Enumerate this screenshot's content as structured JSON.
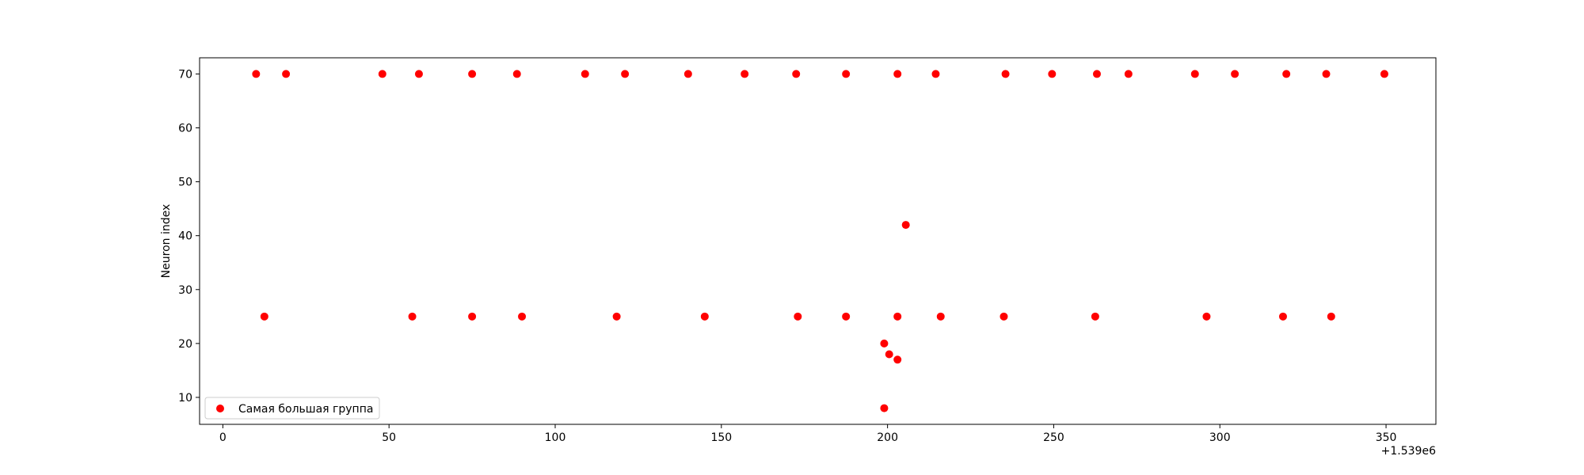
{
  "chart_data": {
    "type": "scatter",
    "title": "",
    "xlabel": "",
    "ylabel": "Neuron index",
    "x_offset_text": "+1.539e6",
    "xlim": [
      -7,
      365
    ],
    "ylim": [
      5,
      73
    ],
    "xticks": [
      0,
      50,
      100,
      150,
      200,
      250,
      300,
      350
    ],
    "yticks": [
      10,
      20,
      30,
      40,
      50,
      60,
      70
    ],
    "grid": false,
    "legend_position": "lower-left",
    "color": "#ff0000",
    "series": [
      {
        "name": "Самая большая группа",
        "points": [
          [
            10,
            70
          ],
          [
            19,
            70
          ],
          [
            48,
            70
          ],
          [
            59,
            70
          ],
          [
            75,
            70
          ],
          [
            88.5,
            70
          ],
          [
            109,
            70
          ],
          [
            121,
            70
          ],
          [
            140,
            70
          ],
          [
            157,
            70
          ],
          [
            172.5,
            70
          ],
          [
            187.5,
            70
          ],
          [
            203,
            70
          ],
          [
            214.5,
            70
          ],
          [
            235.5,
            70
          ],
          [
            249.5,
            70
          ],
          [
            263,
            70
          ],
          [
            272.5,
            70
          ],
          [
            292.5,
            70
          ],
          [
            304.5,
            70
          ],
          [
            320,
            70
          ],
          [
            332,
            70
          ],
          [
            349.5,
            70
          ],
          [
            12.5,
            25
          ],
          [
            57,
            25
          ],
          [
            75,
            25
          ],
          [
            90,
            25
          ],
          [
            118.5,
            25
          ],
          [
            145,
            25
          ],
          [
            173,
            25
          ],
          [
            187.5,
            25
          ],
          [
            203,
            25
          ],
          [
            216,
            25
          ],
          [
            235,
            25
          ],
          [
            262.5,
            25
          ],
          [
            296,
            25
          ],
          [
            319,
            25
          ],
          [
            333.5,
            25
          ],
          [
            205.5,
            42
          ],
          [
            199,
            20
          ],
          [
            200.5,
            18
          ],
          [
            203,
            17
          ],
          [
            199,
            8
          ]
        ]
      }
    ]
  }
}
